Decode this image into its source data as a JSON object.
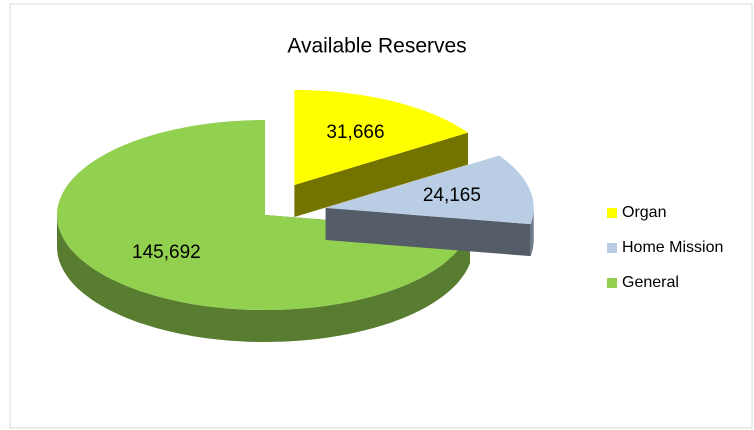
{
  "chart_data": {
    "type": "pie",
    "title": "Available Reserves",
    "categories": [
      "Organ",
      "Home Mission",
      "General"
    ],
    "values": [
      31666,
      24165,
      145692
    ],
    "value_labels": [
      "31,666",
      "24,165",
      "145,692"
    ],
    "colors": [
      "#ffff00",
      "#b9cde5",
      "#92d050"
    ],
    "legend": "right"
  }
}
